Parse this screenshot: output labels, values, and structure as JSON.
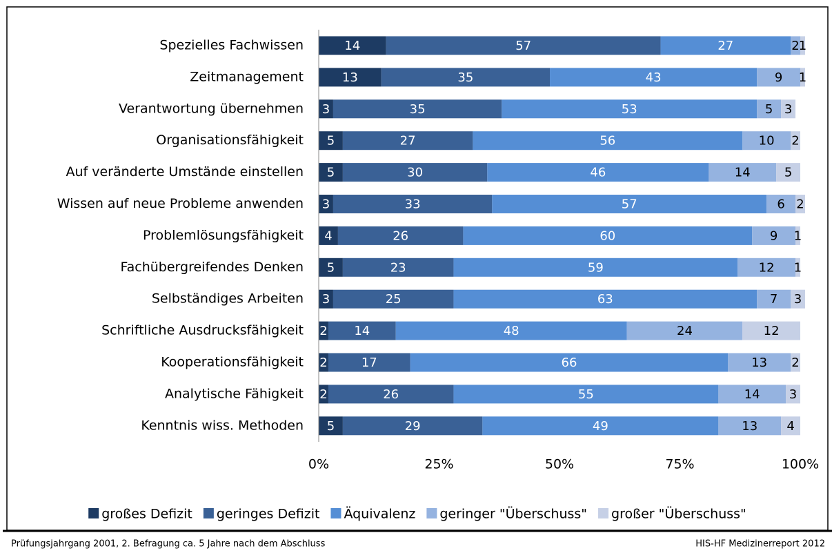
{
  "chart_data": {
    "type": "stacked-bar-horizontal",
    "categories": [
      "Spezielles Fachwissen",
      "Zeitmanagement",
      "Verantwortung übernehmen",
      "Organisationsfähigkeit",
      "Auf veränderte Umstände einstellen",
      "Wissen auf neue Probleme anwenden",
      "Problemlösungsfähigkeit",
      "Fachübergreifendes Denken",
      "Selbständiges Arbeiten",
      "Schriftliche Ausdrucksfähigkeit",
      "Kooperationsfähigkeit",
      "Analytische Fähigkeit",
      "Kenntnis wiss. Methoden"
    ],
    "series": [
      {
        "name": "großes Defizit",
        "color": "#1d3b63",
        "values": [
          14,
          13,
          3,
          5,
          5,
          3,
          4,
          5,
          3,
          2,
          2,
          2,
          5
        ]
      },
      {
        "name": "geringes Defizit",
        "color": "#3a6196",
        "values": [
          57,
          35,
          35,
          27,
          30,
          33,
          26,
          23,
          25,
          14,
          17,
          26,
          29
        ]
      },
      {
        "name": "Äquivalenz",
        "color": "#558ed5",
        "values": [
          27,
          43,
          53,
          56,
          46,
          57,
          60,
          59,
          63,
          48,
          66,
          55,
          49
        ]
      },
      {
        "name": "geringer \"Überschuss\"",
        "color": "#95b3e0",
        "values": [
          2,
          9,
          5,
          10,
          14,
          6,
          9,
          12,
          7,
          24,
          13,
          14,
          13
        ]
      },
      {
        "name": "großer \"Überschuss\"",
        "color": "#c6d0e6",
        "values": [
          1,
          1,
          3,
          2,
          5,
          2,
          1,
          1,
          3,
          12,
          2,
          3,
          4
        ]
      }
    ],
    "xlim": [
      0,
      100
    ],
    "xticks": [
      {
        "value": 0,
        "label": "0%"
      },
      {
        "value": 25,
        "label": "25%"
      },
      {
        "value": 50,
        "label": "50%"
      },
      {
        "value": 75,
        "label": "75%"
      },
      {
        "value": 100,
        "label": "100%"
      }
    ],
    "legend": "bottom"
  },
  "footer": {
    "left": "Prüfungsjahrgang 2001, 2. Befragung ca. 5 Jahre nach dem Abschluss",
    "right": "HIS-HF Medizinerreport 2012"
  }
}
